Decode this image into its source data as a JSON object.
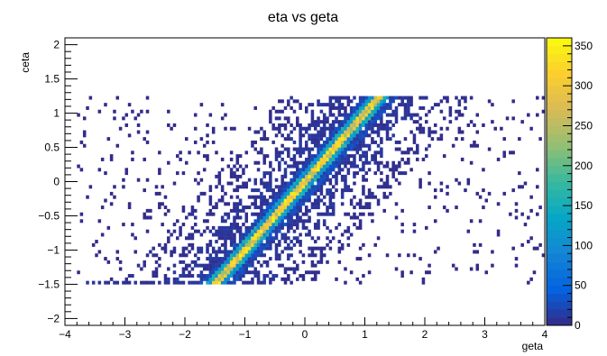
{
  "chart_data": {
    "type": "heatmap",
    "title": "eta vs geta",
    "xlabel": "geta",
    "ylabel": "ceta",
    "xlim": [
      -4,
      4
    ],
    "ylim": [
      -2.1,
      2.1
    ],
    "x_ticks": [
      -4,
      -3,
      -2,
      -1,
      0,
      1,
      2,
      3,
      4
    ],
    "x_tick_labels": [
      "−4",
      "−3",
      "−2",
      "−1",
      "0",
      "1",
      "2",
      "3",
      "4"
    ],
    "y_ticks": [
      -2,
      -1.5,
      -1,
      -0.5,
      0,
      0.5,
      1,
      1.5,
      2
    ],
    "y_tick_labels": [
      "−2",
      "−1.5",
      "−1",
      "−0.5",
      "0",
      "0.5",
      "1",
      "1.5",
      "2"
    ],
    "z_range": [
      0,
      360
    ],
    "z_ticks": [
      0,
      50,
      100,
      150,
      200,
      250,
      300,
      350
    ],
    "z_tick_labels": [
      "0",
      "50",
      "100",
      "150",
      "200",
      "250",
      "300",
      "350"
    ],
    "colormap": [
      "#352a87",
      "#0363e1",
      "#1485d4",
      "#06a7c6",
      "#38b99e",
      "#92bf73",
      "#d9ba56",
      "#fcce2e",
      "#f9fb0e"
    ],
    "data_extent": {
      "x": [
        -3.8,
        4.0
      ],
      "y": [
        -1.5,
        1.25
      ]
    },
    "features": {
      "diagonal_ridge": "ceta ≈ geta, strongest counts along line from (-1.5,-1.5) to (1.2,1.25)",
      "dense_band_half_width_geta": 0.9,
      "sparse_scatter": "low counts spread between geta -3.8 and 3.7"
    }
  }
}
